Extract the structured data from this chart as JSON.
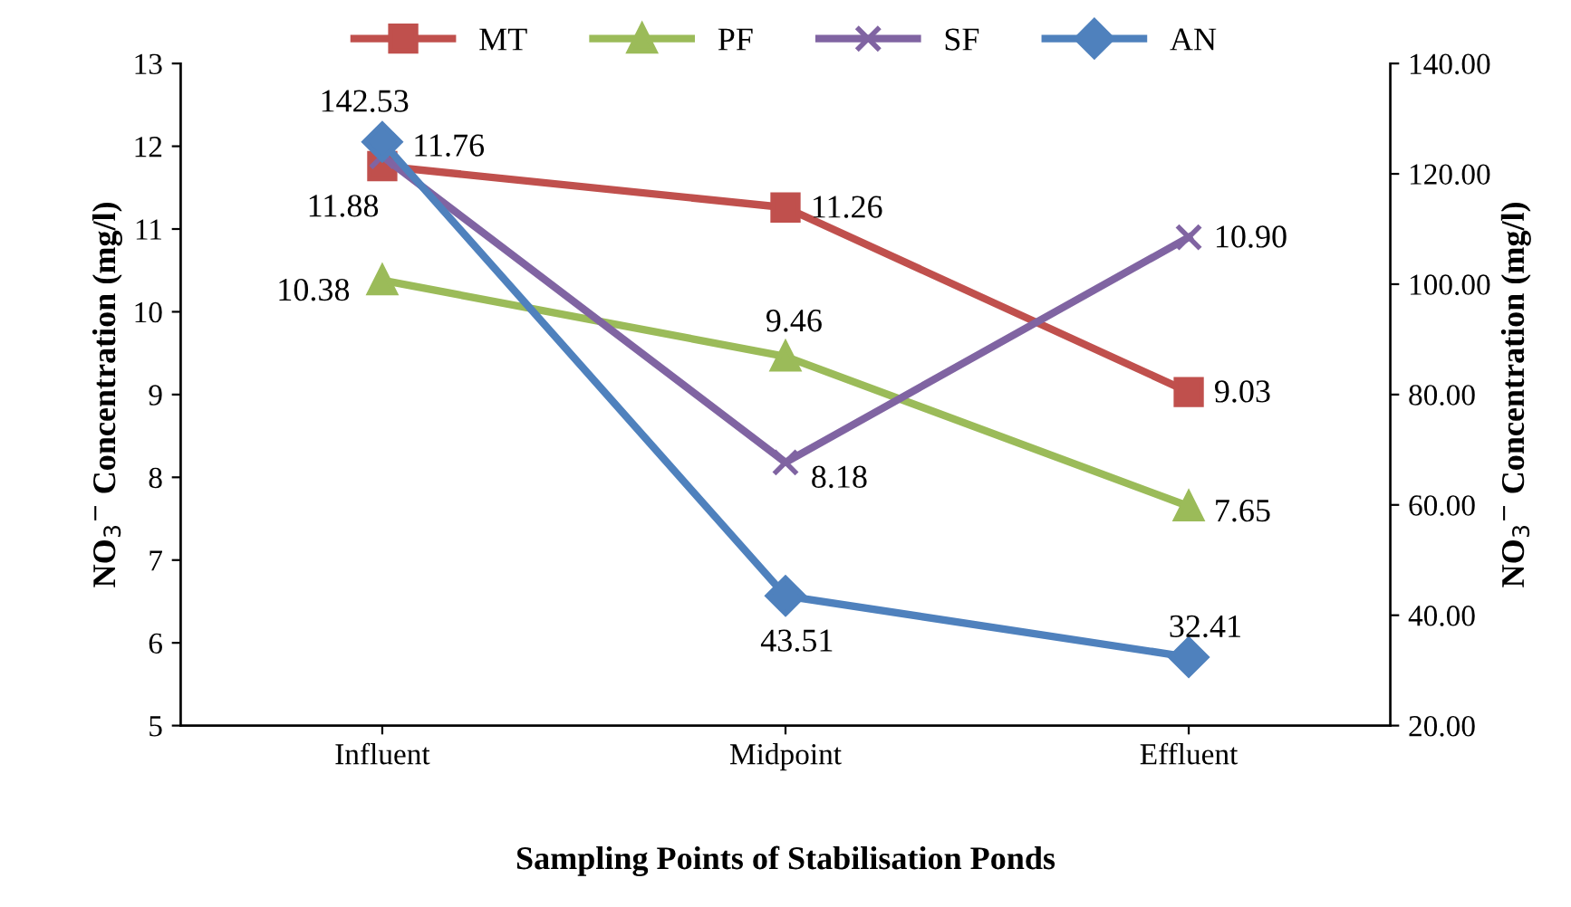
{
  "chart_data": {
    "type": "line",
    "xlabel": "Sampling Points of Stabilisation Ponds",
    "ylabel": "NO$_{3}$$^{−}$ Concentration (mg/l)",
    "y2label": "NO$_{3}$$^{−}$ Concentration (mg/l)",
    "categories": [
      "Influent",
      "Midpoint",
      "Effluent"
    ],
    "series": [
      {
        "name": "MT",
        "color": "#c0504d",
        "marker": "square",
        "values": [
          11.76,
          11.26,
          9.03
        ],
        "value_labels": [
          "11.76",
          "11.26",
          "9.03"
        ]
      },
      {
        "name": "PF",
        "color": "#9bbb59",
        "marker": "triangle",
        "values": [
          10.38,
          9.46,
          7.65
        ],
        "value_labels": [
          "10.38",
          "9.46",
          "7.65"
        ]
      },
      {
        "name": "SF",
        "color": "#8064a2",
        "marker": "cross",
        "values": [
          11.88,
          8.18,
          10.9
        ],
        "value_labels": [
          "11.88",
          "8.18",
          "10.90"
        ]
      },
      {
        "name": "AN",
        "color": "#4f81bd",
        "marker": "diamond",
        "axis": "y2",
        "values": [
          125.8,
          43.51,
          32.41
        ],
        "value_labels": [
          null,
          "43.51",
          "32.41"
        ]
      }
    ],
    "annotations": [
      "142.53"
    ],
    "ylim": [
      5,
      13
    ],
    "yticks": [
      5,
      6,
      7,
      8,
      9,
      10,
      11,
      12,
      13
    ],
    "y2lim": [
      20,
      140
    ],
    "y2ticks": [
      {
        "value": 20,
        "label": "20.00"
      },
      {
        "value": 40,
        "label": "40.00"
      },
      {
        "value": 60,
        "label": "60.00"
      },
      {
        "value": 80,
        "label": "80.00"
      },
      {
        "value": 100,
        "label": "100.00"
      },
      {
        "value": 120,
        "label": "120.00"
      },
      {
        "value": 140,
        "label": "140.00"
      }
    ],
    "grid": false,
    "legend": "top",
    "line_style": "solid"
  }
}
